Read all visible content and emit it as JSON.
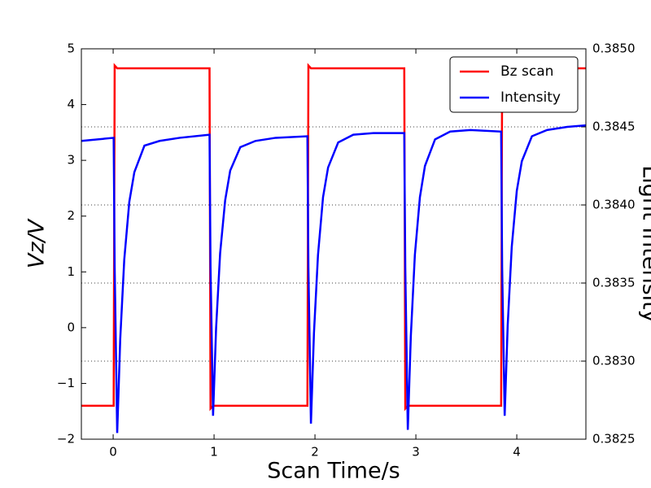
{
  "chart_data": {
    "type": "line",
    "x_label": "Scan Time/s",
    "y_label": "Vz/V",
    "y2_label": "Light Intensity",
    "x": [
      -0.315,
      0.005,
      0.015,
      0.04,
      0.07,
      0.11,
      0.16,
      0.21,
      0.31,
      0.46,
      0.66,
      0.955,
      0.965,
      0.99,
      1.02,
      1.06,
      1.11,
      1.16,
      1.26,
      1.41,
      1.61,
      1.925,
      1.935,
      1.96,
      1.99,
      2.03,
      2.08,
      2.13,
      2.23,
      2.38,
      2.58,
      2.885,
      2.895,
      2.92,
      2.95,
      2.99,
      3.04,
      3.09,
      3.19,
      3.34,
      3.54,
      3.845,
      3.855,
      3.88,
      3.91,
      3.95,
      4.0,
      4.05,
      4.15,
      4.3,
      4.5,
      4.685
    ],
    "series": [
      {
        "name": "Bz scan",
        "color": "#ff0000",
        "axis": "y",
        "values": [
          -1.4,
          -1.4,
          4.7,
          4.65,
          4.65,
          4.65,
          4.65,
          4.65,
          4.65,
          4.65,
          4.65,
          4.65,
          -1.45,
          -1.4,
          -1.4,
          -1.4,
          -1.4,
          -1.4,
          -1.4,
          -1.4,
          -1.4,
          -1.4,
          4.7,
          4.65,
          4.65,
          4.65,
          4.65,
          4.65,
          4.65,
          4.65,
          4.65,
          4.65,
          -1.45,
          -1.4,
          -1.4,
          -1.4,
          -1.4,
          -1.4,
          -1.4,
          -1.4,
          -1.4,
          -1.4,
          4.7,
          4.65,
          4.65,
          4.65,
          4.65,
          4.65,
          4.65,
          4.65,
          4.65,
          4.65
        ]
      },
      {
        "name": "Intensity",
        "color": "#0000ff",
        "axis": "y2",
        "values": [
          0.38441,
          0.38443,
          0.3836,
          0.38254,
          0.38314,
          0.38365,
          0.38402,
          0.38421,
          0.38438,
          0.38441,
          0.38443,
          0.38445,
          0.3836,
          0.38265,
          0.38321,
          0.38369,
          0.38403,
          0.38422,
          0.38437,
          0.38441,
          0.38443,
          0.38444,
          0.3836,
          0.3826,
          0.38318,
          0.38368,
          0.38405,
          0.38424,
          0.3844,
          0.38445,
          0.38446,
          0.38446,
          0.3836,
          0.38256,
          0.38316,
          0.38368,
          0.38405,
          0.38425,
          0.38442,
          0.38447,
          0.38448,
          0.38447,
          0.3836,
          0.38265,
          0.38323,
          0.38373,
          0.38409,
          0.38428,
          0.38444,
          0.38448,
          0.3845,
          0.38451
        ]
      }
    ],
    "xlim": [
      -0.315,
      4.685
    ],
    "xticks": [
      0,
      1,
      2,
      3,
      4
    ],
    "ylim": [
      -2,
      5
    ],
    "yticks": [
      {
        "value": -2,
        "label": "−2"
      },
      {
        "value": -1,
        "label": "−1"
      },
      0,
      1,
      2,
      3,
      4,
      5
    ],
    "y2lim": [
      0.3825,
      0.385
    ],
    "y2ticks": [
      0.3825,
      {
        "value": 0.383,
        "label": "0.3830"
      },
      0.3835,
      {
        "value": 0.384,
        "label": "0.3840"
      },
      0.3845,
      {
        "value": 0.385,
        "label": "0.3850"
      }
    ],
    "grid": true,
    "grid_axis": "y2",
    "legend": "upper right"
  }
}
